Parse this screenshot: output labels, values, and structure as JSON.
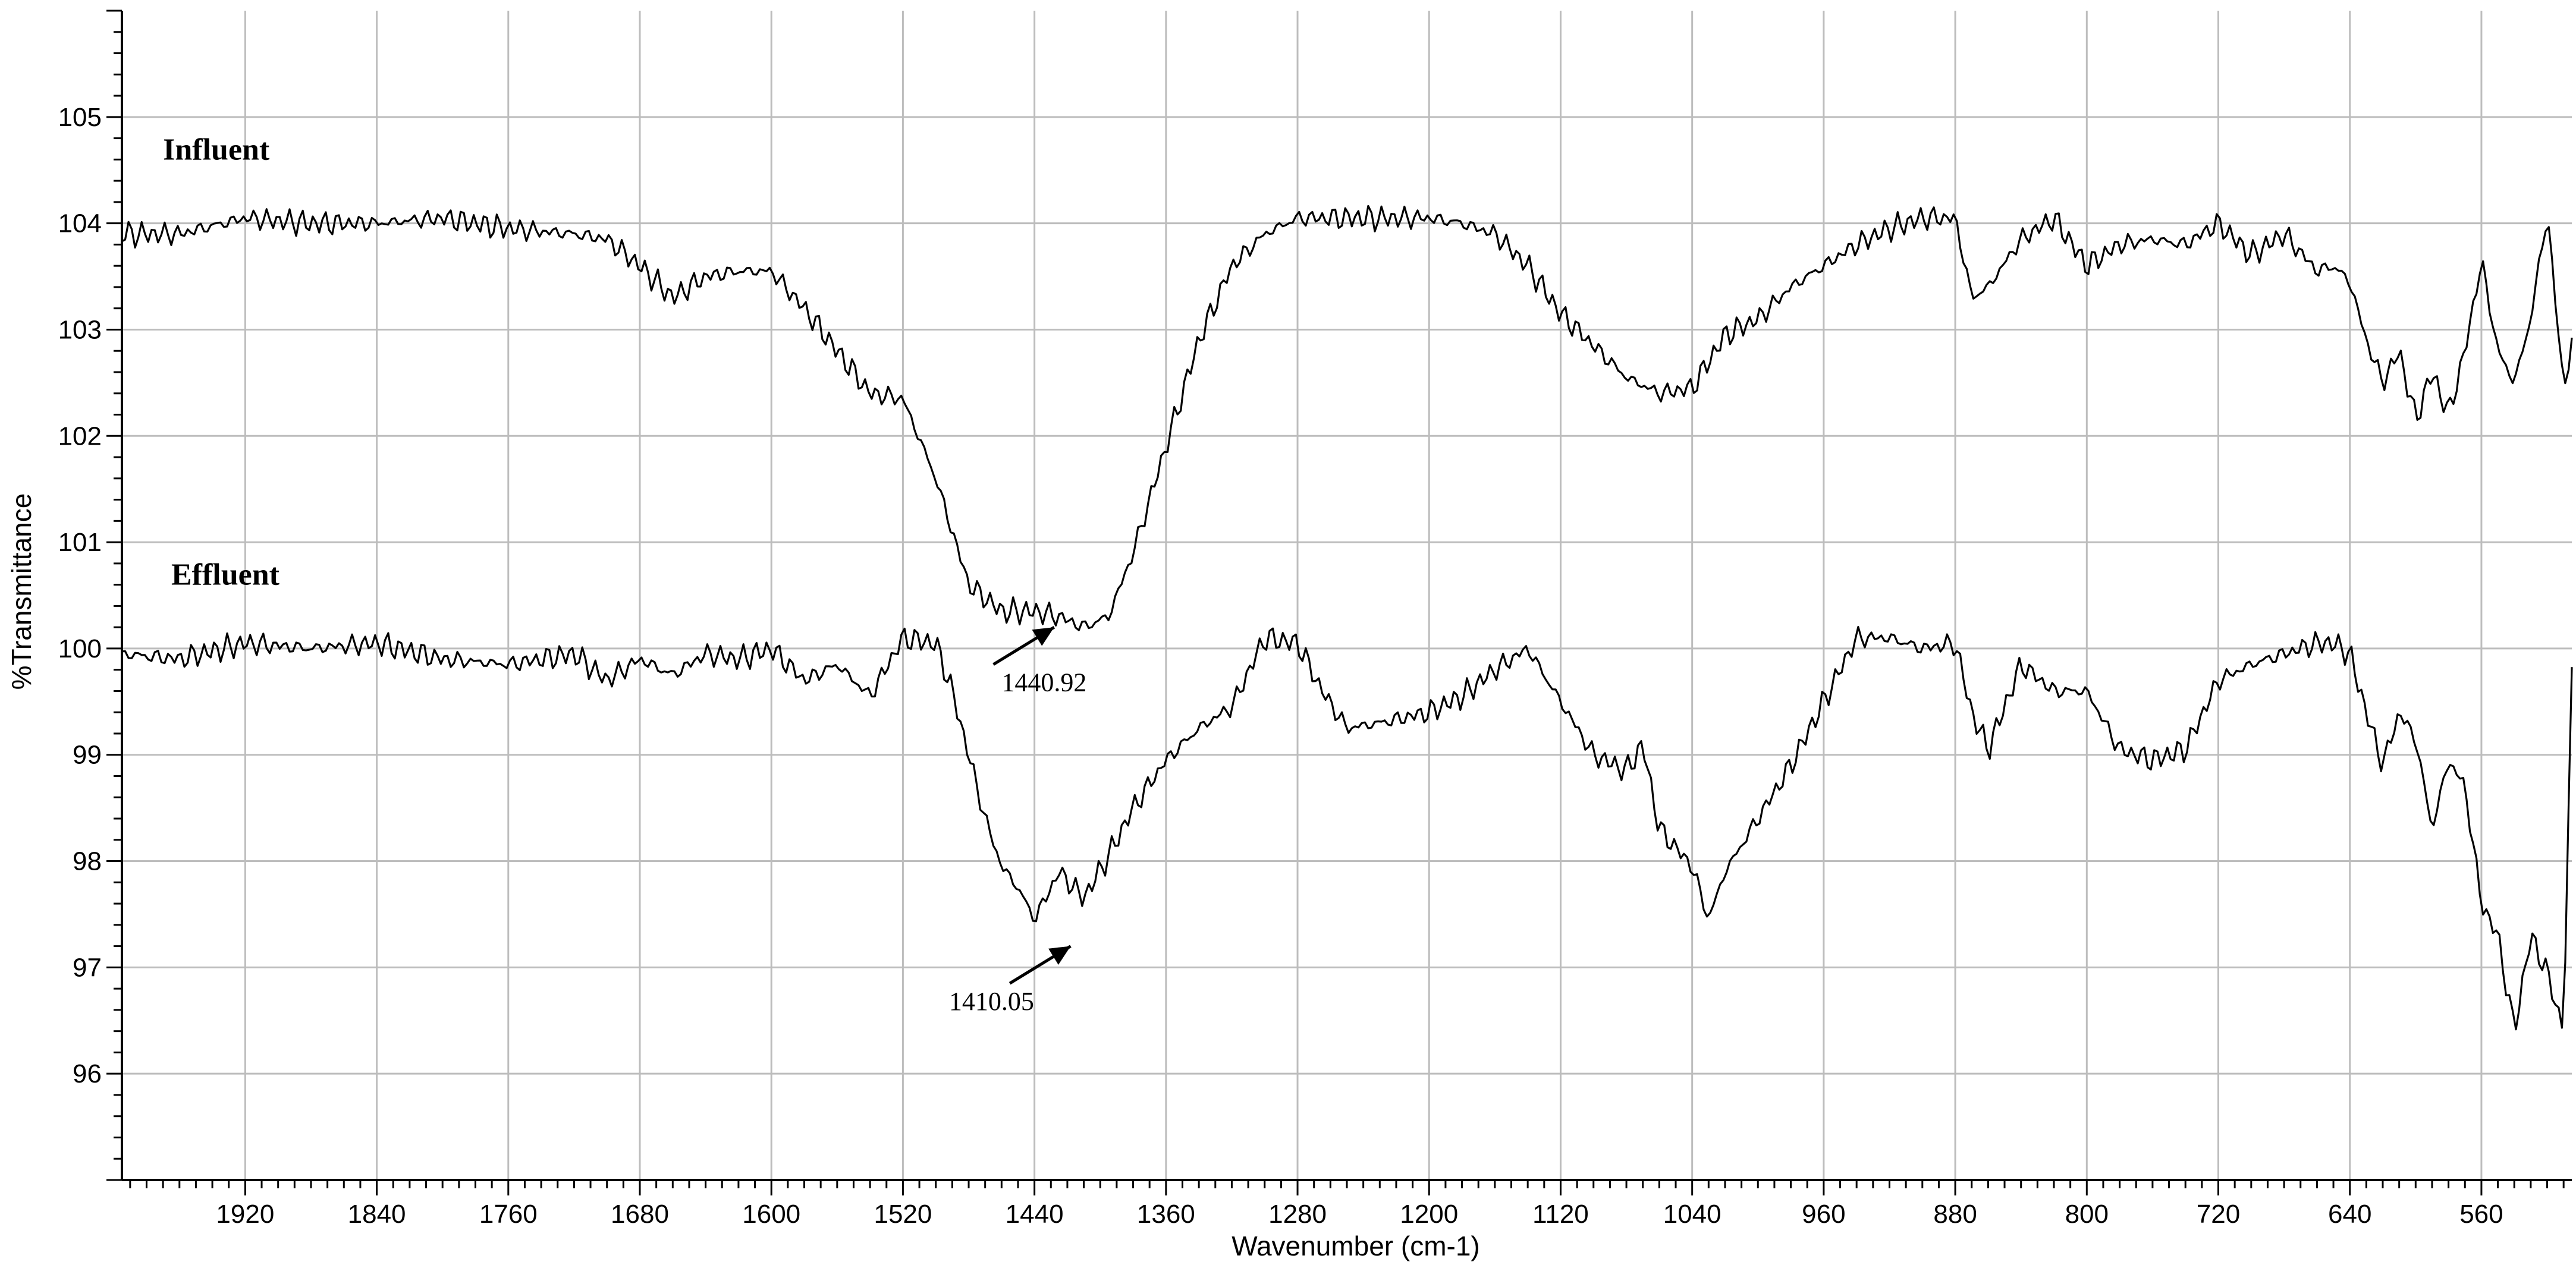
{
  "chart_data": {
    "type": "line",
    "title": "",
    "xlabel": "Wavenumber (cm-1)",
    "ylabel": "%Transmittance",
    "xlim": [
      1995,
      505
    ],
    "ylim": [
      95,
      106
    ],
    "x_reversed": true,
    "grid": true,
    "x_ticks": [
      1920,
      1840,
      1760,
      1680,
      1600,
      1520,
      1440,
      1360,
      1280,
      1200,
      1120,
      1040,
      960,
      880,
      800,
      720,
      640,
      560
    ],
    "y_ticks": [
      96,
      97,
      98,
      99,
      100,
      101,
      102,
      103,
      104,
      105
    ],
    "series": [
      {
        "name": "Influent",
        "x": [
          1995,
          1960,
          1920,
          1880,
          1840,
          1800,
          1760,
          1720,
          1700,
          1680,
          1660,
          1640,
          1620,
          1600,
          1580,
          1560,
          1540,
          1520,
          1500,
          1480,
          1460,
          1440,
          1425,
          1410,
          1395,
          1380,
          1360,
          1340,
          1320,
          1300,
          1280,
          1260,
          1240,
          1200,
          1180,
          1160,
          1140,
          1120,
          1100,
          1080,
          1060,
          1040,
          1020,
          1000,
          980,
          960,
          940,
          920,
          900,
          880,
          870,
          860,
          840,
          820,
          800,
          780,
          760,
          740,
          720,
          700,
          680,
          660,
          650,
          640,
          630,
          620,
          610,
          600,
          590,
          580,
          570,
          560,
          550,
          540,
          530,
          520,
          510,
          505
        ],
        "values": [
          103.9,
          103.9,
          104.05,
          104.0,
          104.0,
          104.05,
          103.95,
          103.9,
          103.85,
          103.6,
          103.3,
          103.5,
          103.55,
          103.55,
          103.2,
          102.8,
          102.4,
          102.35,
          101.6,
          100.6,
          100.35,
          100.35,
          100.3,
          100.2,
          100.3,
          100.9,
          101.9,
          102.9,
          103.6,
          103.9,
          104.05,
          104.05,
          104.05,
          104.05,
          104.0,
          103.9,
          103.6,
          103.15,
          102.85,
          102.55,
          102.4,
          102.45,
          102.95,
          103.1,
          103.4,
          103.6,
          103.8,
          103.95,
          104.05,
          104.05,
          103.3,
          103.4,
          103.85,
          104.05,
          103.6,
          103.8,
          103.85,
          103.8,
          104.0,
          103.7,
          103.9,
          103.55,
          103.6,
          103.45,
          102.9,
          102.5,
          102.8,
          102.15,
          102.6,
          102.2,
          102.8,
          103.65,
          102.8,
          102.5,
          103.1,
          104.1,
          102.45,
          102.85
        ]
      },
      {
        "name": "Effluent",
        "x": [
          1995,
          1960,
          1920,
          1880,
          1840,
          1800,
          1760,
          1720,
          1700,
          1680,
          1660,
          1640,
          1620,
          1600,
          1580,
          1560,
          1540,
          1520,
          1500,
          1490,
          1480,
          1470,
          1460,
          1450,
          1440,
          1425,
          1410,
          1395,
          1380,
          1360,
          1340,
          1320,
          1300,
          1280,
          1265,
          1250,
          1230,
          1200,
          1180,
          1160,
          1140,
          1120,
          1100,
          1080,
          1070,
          1060,
          1040,
          1030,
          1020,
          1000,
          980,
          960,
          940,
          920,
          900,
          880,
          870,
          860,
          840,
          820,
          800,
          780,
          760,
          740,
          720,
          700,
          680,
          660,
          650,
          640,
          630,
          620,
          610,
          600,
          590,
          580,
          570,
          560,
          550,
          540,
          530,
          520,
          510,
          505
        ],
        "values": [
          99.95,
          99.9,
          100.05,
          100.0,
          100.05,
          99.9,
          99.85,
          99.95,
          99.7,
          99.9,
          99.75,
          99.95,
          99.9,
          100.0,
          99.7,
          99.85,
          99.55,
          100.1,
          100.05,
          99.6,
          99.0,
          98.4,
          97.95,
          97.75,
          97.45,
          97.9,
          97.65,
          98.05,
          98.5,
          98.95,
          99.25,
          99.45,
          100.1,
          100.05,
          99.6,
          99.25,
          99.3,
          99.4,
          99.55,
          99.8,
          100.0,
          99.5,
          99.0,
          98.85,
          99.1,
          98.3,
          97.95,
          97.45,
          97.9,
          98.4,
          98.9,
          99.5,
          100.1,
          100.1,
          100.0,
          100.05,
          99.4,
          99.05,
          99.85,
          99.6,
          99.6,
          99.05,
          98.95,
          99.05,
          99.7,
          99.85,
          99.95,
          100.05,
          100.05,
          99.95,
          99.4,
          98.9,
          99.4,
          99.15,
          98.3,
          98.95,
          98.7,
          97.6,
          97.3,
          96.4,
          97.3,
          96.95,
          96.4,
          99.8
        ]
      }
    ],
    "series_labels": [
      "Influent",
      "Effluent"
    ],
    "annotations": [
      {
        "text": "1440.92",
        "x": 1440.92,
        "y": 100.35,
        "series": "Influent",
        "arrow": true
      },
      {
        "text": "1410.05",
        "x": 1410.05,
        "y": 97.45,
        "series": "Effluent",
        "arrow": true
      }
    ],
    "legend": "none"
  }
}
